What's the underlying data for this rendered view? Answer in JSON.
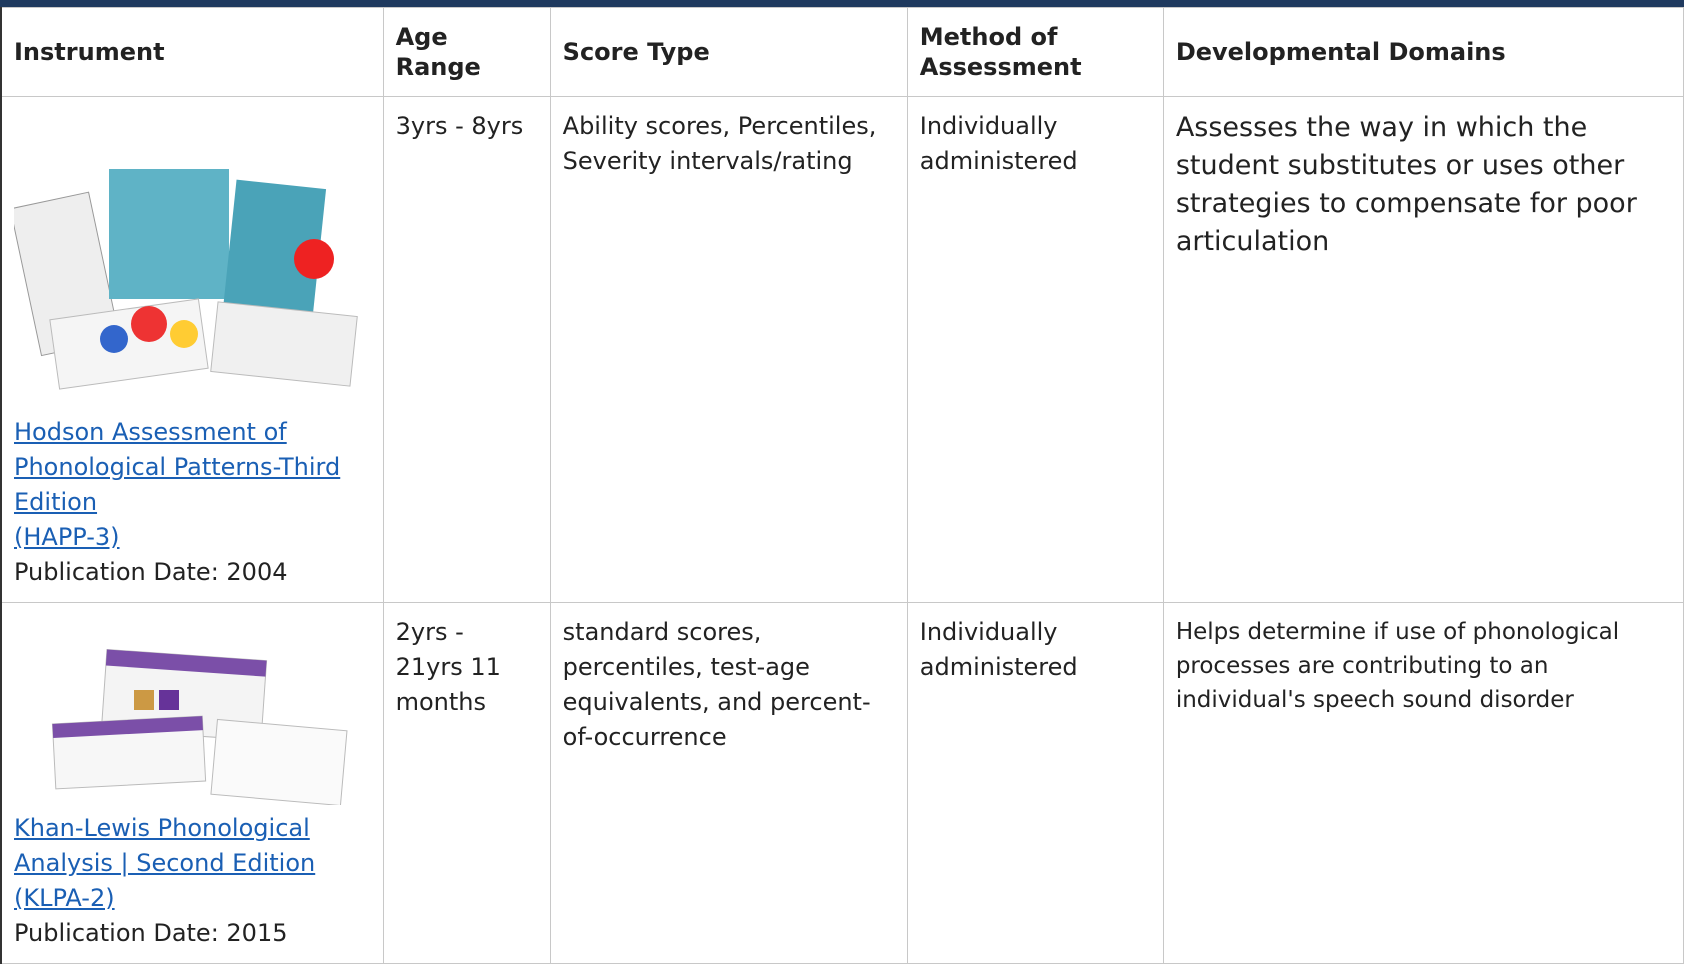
{
  "table": {
    "headers": [
      "Instrument",
      "Age Range",
      "Score Type",
      "Method of Assessment",
      "Developmental Domains"
    ],
    "rows": [
      {
        "instrument_link": "Hodson Assessment of Phonological Patterns-Third Edition",
        "instrument_abbr": "(HAPP-3)",
        "publication": "Publication Date: 2004",
        "age_range": "3yrs - 8yrs",
        "score_type": "Ability scores, Percentiles, Severity intervals/rating",
        "method": "Individually administered",
        "domains": "Assesses the way in which the student substitutes or uses other strategies to compensate for poor articulation"
      },
      {
        "instrument_link": "Khan-Lewis Phonological Analysis | Second Edition",
        "instrument_abbr": "(KLPA-2)",
        "publication": "Publication Date: 2015",
        "age_range": "2yrs - 21yrs 11 months",
        "score_type": "standard scores, percentiles, test-age equivalents, and percent-of-occurrence",
        "method": "Individually administered",
        "domains": "Helps determine if use of phonological processes are contributing to an individual's speech sound disorder"
      }
    ]
  }
}
